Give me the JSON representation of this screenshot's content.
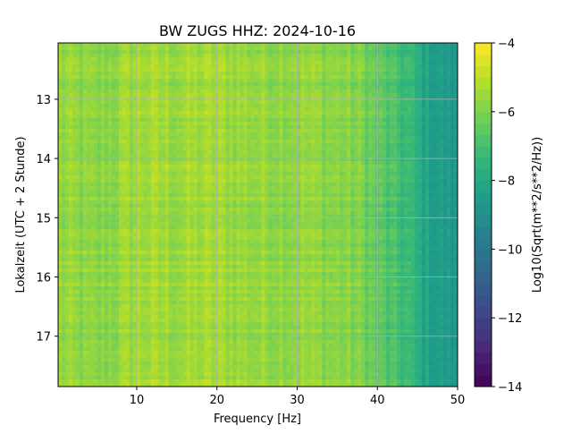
{
  "chart_data": {
    "type": "heatmap",
    "title": "BW ZUGS  HHZ: 2024-10-16",
    "xlabel": "Frequency [Hz]",
    "ylabel": "Lokalzeit (UTC + 2 Stunde)",
    "xlim": [
      0.2,
      50
    ],
    "ylim": [
      12.05,
      17.85
    ],
    "y_inverted": true,
    "x_ticks": [
      10,
      20,
      30,
      40,
      50
    ],
    "y_ticks": [
      13,
      14,
      15,
      16,
      17
    ],
    "grid": true,
    "colormap": "viridis",
    "colorbar": {
      "label": "Log10(Sqrt(m**2/s**2/Hz))",
      "range": [
        -14,
        -4
      ],
      "ticks": [
        -14,
        -12,
        -10,
        -8,
        -6,
        -4
      ]
    },
    "value_profile_by_frequency": {
      "frequency_hz": [
        0,
        5,
        10,
        15,
        20,
        25,
        30,
        35,
        38,
        40,
        42,
        44,
        45,
        46,
        48,
        50
      ],
      "log10_amplitude": [
        -5.6,
        -5.9,
        -5.4,
        -5.5,
        -5.4,
        -5.6,
        -5.6,
        -5.8,
        -6.0,
        -6.5,
        -7.0,
        -7.3,
        -7.8,
        -8.2,
        -8.5,
        -8.8
      ]
    },
    "colors": {
      "viridis": [
        "#440154",
        "#482878",
        "#3e4989",
        "#31688e",
        "#26828e",
        "#1f9e89",
        "#35b779",
        "#6ece58",
        "#b5de2b",
        "#fde725"
      ],
      "grid": "#b0b0b0"
    }
  }
}
